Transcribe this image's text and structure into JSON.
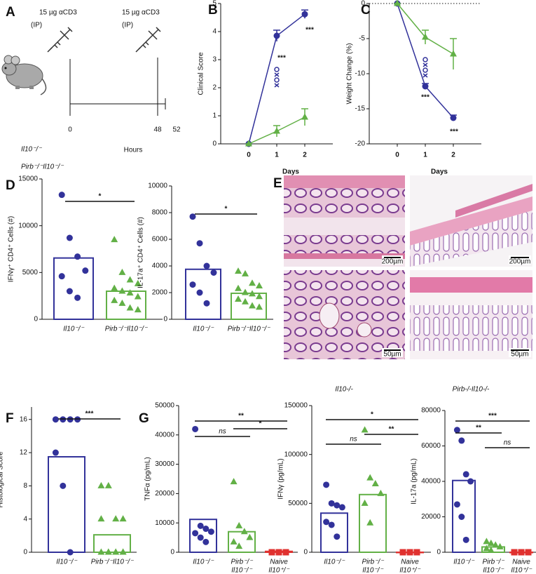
{
  "schematic": {
    "panel": "A",
    "doses": [
      {
        "text": "15 µg αCD3",
        "route": "(IP)"
      },
      {
        "text": "15 µg αCD3",
        "route": "(IP)"
      }
    ],
    "ticks": [
      0,
      48,
      52
    ],
    "unit": "Hours",
    "groups": [
      "Il10⁻/⁻",
      "Pirb⁻/⁻Il10⁻/⁻"
    ]
  },
  "histology": {
    "panel": "E",
    "images": [
      {
        "scale": "200µm"
      },
      {
        "scale": "200µm"
      },
      {
        "scale": "50µm"
      },
      {
        "scale": "50µm"
      }
    ],
    "captions": [
      "Il10-/-",
      "Pirb-/-Il10-/-"
    ]
  },
  "chart_data": [
    {
      "type": "line",
      "panel": "B",
      "xlabel": "Days",
      "ylabel": "Clinical Score",
      "x": [
        0,
        1,
        2
      ],
      "xlim": [
        -1,
        3
      ],
      "xticks": [
        0,
        1,
        2
      ],
      "ylim": [
        0,
        5
      ],
      "yticks": [
        0,
        1,
        2,
        3,
        4,
        5
      ],
      "series": [
        {
          "name": "Il10⁻/⁻",
          "color": "#32329a",
          "marker": "circle",
          "values": [
            0,
            3.85,
            4.62
          ],
          "errors": [
            0,
            0.2,
            0.15
          ]
        },
        {
          "name": "Pirb⁻/⁻Il10⁻/⁻",
          "color": "#62b046",
          "marker": "triangle",
          "values": [
            0,
            0.45,
            0.95
          ],
          "errors": [
            0,
            0.2,
            0.3
          ]
        }
      ],
      "annotations": [
        "***",
        "***"
      ]
    },
    {
      "type": "line",
      "panel": "C",
      "xlabel": "Days",
      "ylabel": "Weight Change (%)",
      "x": [
        0,
        1,
        2
      ],
      "xlim": [
        -1,
        3
      ],
      "xticks": [
        0,
        1,
        2
      ],
      "ylim": [
        -20,
        0
      ],
      "yticks": [
        0,
        -5,
        -10,
        -15,
        -20
      ],
      "zero_line": "dotted",
      "series": [
        {
          "name": "Il10⁻/⁻",
          "color": "#32329a",
          "marker": "circle",
          "values": [
            0,
            -11.8,
            -16.3
          ],
          "errors": [
            0,
            0.4,
            0.4
          ]
        },
        {
          "name": "Pirb⁻/⁻Il10⁻/⁻",
          "color": "#62b046",
          "marker": "triangle",
          "values": [
            0,
            -4.8,
            -7.2
          ],
          "errors": [
            0,
            1,
            2.2
          ]
        }
      ],
      "annotations": [
        "***",
        "***"
      ]
    },
    {
      "type": "bar",
      "panel": "D",
      "ylabel": "IFNγ⁺ CD4⁺ Cells (#)",
      "categories": [
        [
          "Il10⁻/⁻"
        ],
        [
          "Pirb⁻/⁻Il10⁻/⁻"
        ]
      ],
      "colors": [
        "#32329a",
        "#62b046"
      ],
      "markers": [
        "circle",
        "triangle"
      ],
      "values": [
        6550,
        3000
      ],
      "points": [
        [
          13300,
          8700,
          6700,
          5200,
          4600,
          3000,
          2300
        ],
        [
          8500,
          5000,
          4200,
          3800,
          3300,
          3000,
          2800,
          2400,
          2000,
          1700,
          1200,
          1000
        ]
      ],
      "ylim": [
        0,
        15000
      ],
      "yticks": [
        0,
        5000,
        10000,
        15000
      ],
      "annotations": [
        {
          "text": "*",
          "groups": [
            0,
            1
          ]
        }
      ]
    },
    {
      "type": "bar",
      "ylabel": "IL-17a⁺ CD4⁺ Cells (#)",
      "categories": [
        [
          "Il10⁻/⁻"
        ],
        [
          "Pirb⁻/⁻Il10⁻/⁻"
        ]
      ],
      "colors": [
        "#32329a",
        "#62b046"
      ],
      "markers": [
        "circle",
        "triangle"
      ],
      "values": [
        3750,
        1950
      ],
      "points": [
        [
          7700,
          5700,
          4000,
          3500,
          2600,
          2000,
          1200
        ],
        [
          3600,
          3400,
          2700,
          2500,
          2300,
          2000,
          1900,
          1700,
          1500,
          1300,
          1000,
          900
        ]
      ],
      "ylim": [
        0,
        10000
      ],
      "yticks": [
        0,
        2000,
        4000,
        6000,
        8000,
        10000
      ],
      "annotations": [
        {
          "text": "*",
          "groups": [
            0,
            1
          ]
        }
      ]
    },
    {
      "type": "bar",
      "panel": "F",
      "ylabel": "Histological  Score",
      "categories": [
        [
          "Il10⁻/⁻"
        ],
        [
          "Pirb⁻/⁻Il10⁻/⁻"
        ]
      ],
      "colors": [
        "#32329a",
        "#62b046"
      ],
      "markers": [
        "circle",
        "triangle"
      ],
      "values": [
        11.5,
        2.1
      ],
      "points": [
        [
          16,
          16,
          16,
          16,
          12,
          8,
          0
        ],
        [
          8,
          8,
          4,
          4,
          4,
          0,
          0,
          0,
          0,
          0,
          0,
          0
        ]
      ],
      "ylim": [
        0,
        17.5
      ],
      "yticks": [
        0,
        4,
        8,
        12,
        16
      ],
      "annotations": [
        {
          "text": "***",
          "groups": [
            0,
            1
          ]
        }
      ]
    },
    {
      "type": "bar",
      "panel": "G",
      "ylabel": "TNFα (pg/mL)",
      "categories": [
        [
          "Il10⁻/⁻"
        ],
        [
          "Pirb⁻/⁻",
          "Il10⁻/⁻"
        ],
        [
          "Naive",
          "Il10⁺/⁻"
        ]
      ],
      "colors": [
        "#32329a",
        "#62b046",
        "#e0312f"
      ],
      "markers": [
        "circle",
        "triangle",
        "square"
      ],
      "values": [
        11200,
        7000,
        300
      ],
      "points": [
        [
          42000,
          9000,
          8000,
          7000,
          6500,
          5000,
          3500
        ],
        [
          24000,
          9000,
          7000,
          5000,
          3500,
          2000
        ],
        [
          0,
          0,
          0
        ]
      ],
      "ylim": [
        0,
        50000
      ],
      "yticks": [
        0,
        10000,
        20000,
        30000,
        40000,
        50000
      ],
      "annotations": [
        {
          "text": "**",
          "groups": [
            0,
            2
          ]
        },
        {
          "text": "ns",
          "groups": [
            0,
            1
          ]
        },
        {
          "text": "*",
          "groups": [
            1,
            2
          ]
        }
      ]
    },
    {
      "type": "bar",
      "ylabel": "IFNγ (pg/mL)",
      "categories": [
        [
          "Il10⁻/⁻"
        ],
        [
          "Pirb⁻/⁻",
          "Il10⁻/⁻"
        ],
        [
          "Naive",
          "Il10⁺/⁻"
        ]
      ],
      "colors": [
        "#32329a",
        "#62b046",
        "#e0312f"
      ],
      "markers": [
        "circle",
        "triangle",
        "square"
      ],
      "values": [
        40000,
        59000,
        0
      ],
      "points": [
        [
          69000,
          50000,
          48000,
          46000,
          31000,
          28000,
          16000
        ],
        [
          125000,
          76000,
          70000,
          60000,
          50000,
          30000
        ],
        [
          0,
          0,
          0
        ]
      ],
      "ylim": [
        0,
        150000
      ],
      "yticks": [
        0,
        50000,
        100000,
        150000
      ],
      "annotations": [
        {
          "text": "*",
          "groups": [
            0,
            2
          ]
        },
        {
          "text": "ns",
          "groups": [
            0,
            1
          ]
        },
        {
          "text": "**",
          "groups": [
            1,
            2
          ]
        }
      ]
    },
    {
      "type": "bar",
      "ylabel": "IL-17a (pg/mL)",
      "categories": [
        [
          "Il10⁻/⁻"
        ],
        [
          "Pirb⁻/⁻",
          "Il10⁻/⁻"
        ],
        [
          "Naive",
          "Il10⁺/⁻"
        ]
      ],
      "colors": [
        "#32329a",
        "#62b046",
        "#e0312f"
      ],
      "markers": [
        "circle",
        "triangle",
        "square"
      ],
      "values": [
        40500,
        3000,
        0
      ],
      "points": [
        [
          69000,
          63000,
          44000,
          40000,
          27000,
          20000,
          7000
        ],
        [
          6000,
          5000,
          4000,
          3000,
          2000,
          1000
        ],
        [
          0,
          0,
          0
        ]
      ],
      "ylim": [
        0,
        80000
      ],
      "yticks": [
        0,
        20000,
        40000,
        60000,
        80000
      ],
      "annotations": [
        {
          "text": "***",
          "groups": [
            0,
            2
          ]
        },
        {
          "text": "**",
          "groups": [
            0,
            1
          ]
        },
        {
          "text": "ns",
          "groups": [
            1,
            2
          ]
        }
      ]
    }
  ]
}
